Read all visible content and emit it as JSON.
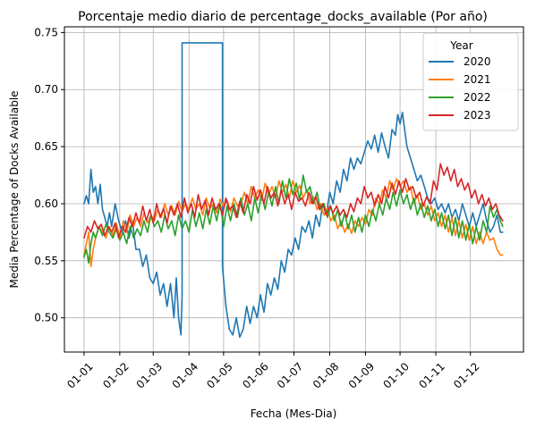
{
  "chart_data": {
    "type": "line",
    "title": "Porcentaje medio diario de percentage_docks_available (Por año)",
    "xlabel": "Fecha (Mes-Dia)",
    "ylabel": "Media Percentage of Docks Available",
    "x_ticks": [
      "01-01",
      "01-02",
      "01-03",
      "01-04",
      "01-05",
      "01-06",
      "01-07",
      "01-08",
      "01-09",
      "01-10",
      "01-11",
      "01-12"
    ],
    "x_tick_days": [
      1,
      32,
      61,
      92,
      122,
      153,
      183,
      214,
      245,
      275,
      306,
      336
    ],
    "xlim": [
      -16,
      382
    ],
    "y_ticks": [
      0.5,
      0.55,
      0.6,
      0.65,
      0.7,
      0.75
    ],
    "y_tick_labels": [
      "0.50",
      "0.55",
      "0.60",
      "0.65",
      "0.70",
      "0.75"
    ],
    "ylim": [
      0.47,
      0.755
    ],
    "grid": true,
    "legend": {
      "title": "Year",
      "position": "top-right"
    },
    "series": [
      {
        "name": "2020",
        "color": "#1f77b4",
        "x": [
          1,
          3,
          5,
          7,
          9,
          11,
          13,
          15,
          17,
          19,
          21,
          23,
          25,
          28,
          31,
          34,
          37,
          40,
          43,
          46,
          49,
          52,
          55,
          58,
          61,
          64,
          67,
          70,
          73,
          76,
          79,
          81,
          83,
          85,
          86,
          86,
          95,
          104,
          113,
          121,
          121,
          124,
          127,
          130,
          133,
          136,
          139,
          142,
          145,
          148,
          151,
          154,
          157,
          160,
          163,
          166,
          169,
          172,
          175,
          178,
          181,
          184,
          187,
          190,
          193,
          196,
          199,
          202,
          205,
          208,
          211,
          214,
          217,
          220,
          223,
          226,
          229,
          232,
          235,
          238,
          241,
          244,
          247,
          250,
          253,
          256,
          259,
          262,
          265,
          268,
          271,
          273,
          275,
          277,
          279,
          281,
          284,
          287,
          290,
          293,
          296,
          299,
          302,
          305,
          308,
          311,
          314,
          317,
          320,
          323,
          326,
          329,
          332,
          335,
          338,
          341,
          344,
          347,
          350,
          353,
          356,
          359,
          362,
          364
        ],
        "y": [
          0.6,
          0.607,
          0.6,
          0.63,
          0.61,
          0.615,
          0.6,
          0.617,
          0.595,
          0.588,
          0.58,
          0.592,
          0.58,
          0.6,
          0.585,
          0.575,
          0.585,
          0.57,
          0.585,
          0.56,
          0.56,
          0.545,
          0.555,
          0.535,
          0.53,
          0.54,
          0.52,
          0.53,
          0.51,
          0.53,
          0.5,
          0.535,
          0.5,
          0.485,
          0.52,
          0.741,
          0.741,
          0.741,
          0.741,
          0.741,
          0.545,
          0.51,
          0.49,
          0.485,
          0.5,
          0.483,
          0.49,
          0.51,
          0.495,
          0.51,
          0.5,
          0.52,
          0.505,
          0.53,
          0.52,
          0.535,
          0.525,
          0.55,
          0.54,
          0.56,
          0.555,
          0.57,
          0.56,
          0.58,
          0.575,
          0.585,
          0.57,
          0.59,
          0.58,
          0.6,
          0.59,
          0.61,
          0.6,
          0.62,
          0.61,
          0.63,
          0.62,
          0.64,
          0.63,
          0.64,
          0.635,
          0.645,
          0.655,
          0.648,
          0.66,
          0.645,
          0.662,
          0.65,
          0.64,
          0.665,
          0.66,
          0.678,
          0.67,
          0.68,
          0.665,
          0.65,
          0.64,
          0.63,
          0.62,
          0.625,
          0.615,
          0.605,
          0.6,
          0.605,
          0.595,
          0.6,
          0.592,
          0.6,
          0.588,
          0.595,
          0.585,
          0.6,
          0.59,
          0.58,
          0.592,
          0.58,
          0.59,
          0.6,
          0.585,
          0.575,
          0.58,
          0.59,
          0.575,
          0.575
        ]
      },
      {
        "name": "2021",
        "color": "#ff7f0e",
        "x": [
          1,
          3,
          5,
          7,
          9,
          11,
          14,
          17,
          20,
          23,
          26,
          29,
          32,
          35,
          38,
          41,
          44,
          47,
          50,
          53,
          56,
          59,
          62,
          65,
          68,
          71,
          74,
          77,
          80,
          83,
          86,
          89,
          92,
          95,
          98,
          101,
          104,
          107,
          110,
          113,
          116,
          119,
          122,
          125,
          128,
          131,
          134,
          137,
          140,
          143,
          146,
          149,
          152,
          155,
          158,
          161,
          164,
          167,
          170,
          173,
          176,
          179,
          182,
          185,
          188,
          191,
          194,
          197,
          200,
          203,
          206,
          209,
          212,
          215,
          218,
          221,
          224,
          227,
          230,
          233,
          236,
          239,
          242,
          245,
          248,
          251,
          254,
          257,
          260,
          263,
          266,
          269,
          272,
          275,
          278,
          281,
          284,
          287,
          290,
          293,
          296,
          299,
          302,
          305,
          308,
          311,
          314,
          317,
          320,
          323,
          326,
          329,
          332,
          335,
          338,
          341,
          344,
          347,
          350,
          353,
          356,
          359,
          362,
          364
        ],
        "y": [
          0.555,
          0.565,
          0.575,
          0.545,
          0.56,
          0.57,
          0.58,
          0.575,
          0.57,
          0.58,
          0.572,
          0.583,
          0.57,
          0.585,
          0.575,
          0.59,
          0.58,
          0.588,
          0.58,
          0.592,
          0.583,
          0.59,
          0.585,
          0.595,
          0.588,
          0.6,
          0.59,
          0.598,
          0.59,
          0.602,
          0.593,
          0.6,
          0.595,
          0.605,
          0.595,
          0.6,
          0.59,
          0.605,
          0.596,
          0.6,
          0.592,
          0.604,
          0.597,
          0.603,
          0.593,
          0.605,
          0.598,
          0.6,
          0.61,
          0.6,
          0.615,
          0.605,
          0.612,
          0.603,
          0.618,
          0.608,
          0.615,
          0.605,
          0.62,
          0.61,
          0.617,
          0.605,
          0.62,
          0.61,
          0.616,
          0.605,
          0.612,
          0.6,
          0.606,
          0.595,
          0.6,
          0.59,
          0.596,
          0.585,
          0.59,
          0.578,
          0.585,
          0.575,
          0.582,
          0.574,
          0.585,
          0.58,
          0.588,
          0.582,
          0.595,
          0.59,
          0.605,
          0.6,
          0.612,
          0.605,
          0.62,
          0.612,
          0.622,
          0.615,
          0.62,
          0.61,
          0.615,
          0.6,
          0.608,
          0.595,
          0.6,
          0.59,
          0.598,
          0.585,
          0.592,
          0.58,
          0.59,
          0.575,
          0.588,
          0.572,
          0.585,
          0.57,
          0.582,
          0.568,
          0.58,
          0.565,
          0.575,
          0.565,
          0.575,
          0.568,
          0.57,
          0.56,
          0.555,
          0.555
        ]
      },
      {
        "name": "2022",
        "color": "#2ca02c",
        "x": [
          1,
          3,
          5,
          7,
          9,
          11,
          14,
          17,
          20,
          23,
          26,
          29,
          32,
          35,
          38,
          41,
          44,
          47,
          50,
          53,
          56,
          59,
          62,
          65,
          68,
          71,
          74,
          77,
          80,
          83,
          86,
          89,
          92,
          95,
          98,
          101,
          104,
          107,
          110,
          113,
          116,
          119,
          122,
          125,
          128,
          131,
          134,
          137,
          140,
          143,
          146,
          149,
          152,
          155,
          158,
          161,
          164,
          167,
          170,
          173,
          176,
          179,
          182,
          185,
          188,
          191,
          194,
          197,
          200,
          203,
          206,
          209,
          212,
          215,
          218,
          221,
          224,
          227,
          230,
          233,
          236,
          239,
          242,
          245,
          248,
          251,
          254,
          257,
          260,
          263,
          266,
          269,
          272,
          275,
          278,
          281,
          284,
          287,
          290,
          293,
          296,
          299,
          302,
          305,
          308,
          311,
          314,
          317,
          320,
          323,
          326,
          329,
          332,
          335,
          338,
          341,
          344,
          347,
          350,
          353,
          356,
          359,
          362,
          364
        ],
        "y": [
          0.553,
          0.56,
          0.548,
          0.565,
          0.575,
          0.57,
          0.58,
          0.572,
          0.582,
          0.575,
          0.57,
          0.578,
          0.568,
          0.575,
          0.565,
          0.58,
          0.57,
          0.578,
          0.572,
          0.585,
          0.575,
          0.59,
          0.58,
          0.585,
          0.575,
          0.59,
          0.578,
          0.585,
          0.572,
          0.59,
          0.578,
          0.585,
          0.575,
          0.595,
          0.58,
          0.592,
          0.578,
          0.595,
          0.582,
          0.598,
          0.585,
          0.6,
          0.58,
          0.598,
          0.585,
          0.6,
          0.588,
          0.605,
          0.59,
          0.6,
          0.585,
          0.605,
          0.592,
          0.608,
          0.595,
          0.61,
          0.598,
          0.615,
          0.6,
          0.62,
          0.605,
          0.622,
          0.608,
          0.618,
          0.603,
          0.625,
          0.61,
          0.615,
          0.6,
          0.61,
          0.595,
          0.6,
          0.588,
          0.598,
          0.585,
          0.595,
          0.58,
          0.592,
          0.578,
          0.59,
          0.575,
          0.588,
          0.575,
          0.59,
          0.58,
          0.595,
          0.585,
          0.6,
          0.59,
          0.605,
          0.595,
          0.61,
          0.598,
          0.612,
          0.6,
          0.608,
          0.595,
          0.605,
          0.59,
          0.6,
          0.588,
          0.598,
          0.585,
          0.595,
          0.58,
          0.592,
          0.578,
          0.59,
          0.572,
          0.588,
          0.57,
          0.585,
          0.568,
          0.582,
          0.565,
          0.58,
          0.568,
          0.585,
          0.575,
          0.598,
          0.588,
          0.595,
          0.585,
          0.58
        ]
      },
      {
        "name": "2023",
        "color": "#d62728",
        "x": [
          1,
          4,
          7,
          10,
          13,
          16,
          19,
          22,
          25,
          28,
          31,
          34,
          37,
          40,
          43,
          46,
          49,
          52,
          55,
          58,
          61,
          64,
          67,
          70,
          73,
          76,
          79,
          82,
          85,
          88,
          91,
          94,
          97,
          100,
          103,
          106,
          109,
          112,
          115,
          118,
          121,
          124,
          127,
          130,
          133,
          136,
          139,
          142,
          145,
          148,
          151,
          154,
          157,
          160,
          163,
          166,
          169,
          172,
          175,
          178,
          181,
          184,
          187,
          190,
          193,
          196,
          199,
          202,
          205,
          208,
          211,
          214,
          217,
          220,
          223,
          226,
          229,
          232,
          235,
          238,
          241,
          244,
          247,
          250,
          253,
          256,
          259,
          262,
          265,
          268,
          271,
          274,
          277,
          280,
          283,
          286,
          289,
          292,
          295,
          298,
          301,
          304,
          307,
          310,
          313,
          316,
          319,
          322,
          325,
          328,
          331,
          334,
          337,
          340,
          343,
          346,
          349,
          352,
          355,
          358,
          361,
          364
        ],
        "y": [
          0.57,
          0.58,
          0.575,
          0.585,
          0.578,
          0.582,
          0.572,
          0.58,
          0.575,
          0.583,
          0.57,
          0.58,
          0.575,
          0.588,
          0.58,
          0.592,
          0.583,
          0.598,
          0.585,
          0.595,
          0.583,
          0.6,
          0.588,
          0.596,
          0.583,
          0.598,
          0.59,
          0.6,
          0.588,
          0.605,
          0.592,
          0.6,
          0.588,
          0.608,
          0.595,
          0.603,
          0.59,
          0.605,
          0.595,
          0.6,
          0.59,
          0.605,
          0.595,
          0.598,
          0.588,
          0.602,
          0.592,
          0.608,
          0.6,
          0.615,
          0.603,
          0.612,
          0.6,
          0.615,
          0.605,
          0.61,
          0.598,
          0.612,
          0.6,
          0.608,
          0.595,
          0.61,
          0.602,
          0.605,
          0.598,
          0.61,
          0.6,
          0.606,
          0.595,
          0.6,
          0.59,
          0.598,
          0.592,
          0.598,
          0.59,
          0.595,
          0.588,
          0.6,
          0.593,
          0.605,
          0.6,
          0.615,
          0.605,
          0.61,
          0.598,
          0.608,
          0.6,
          0.615,
          0.605,
          0.618,
          0.608,
          0.62,
          0.61,
          0.622,
          0.612,
          0.615,
          0.605,
          0.61,
          0.598,
          0.606,
          0.6,
          0.62,
          0.612,
          0.635,
          0.625,
          0.632,
          0.62,
          0.63,
          0.615,
          0.622,
          0.612,
          0.618,
          0.605,
          0.612,
          0.6,
          0.608,
          0.598,
          0.605,
          0.595,
          0.6,
          0.59,
          0.585
        ]
      }
    ]
  }
}
